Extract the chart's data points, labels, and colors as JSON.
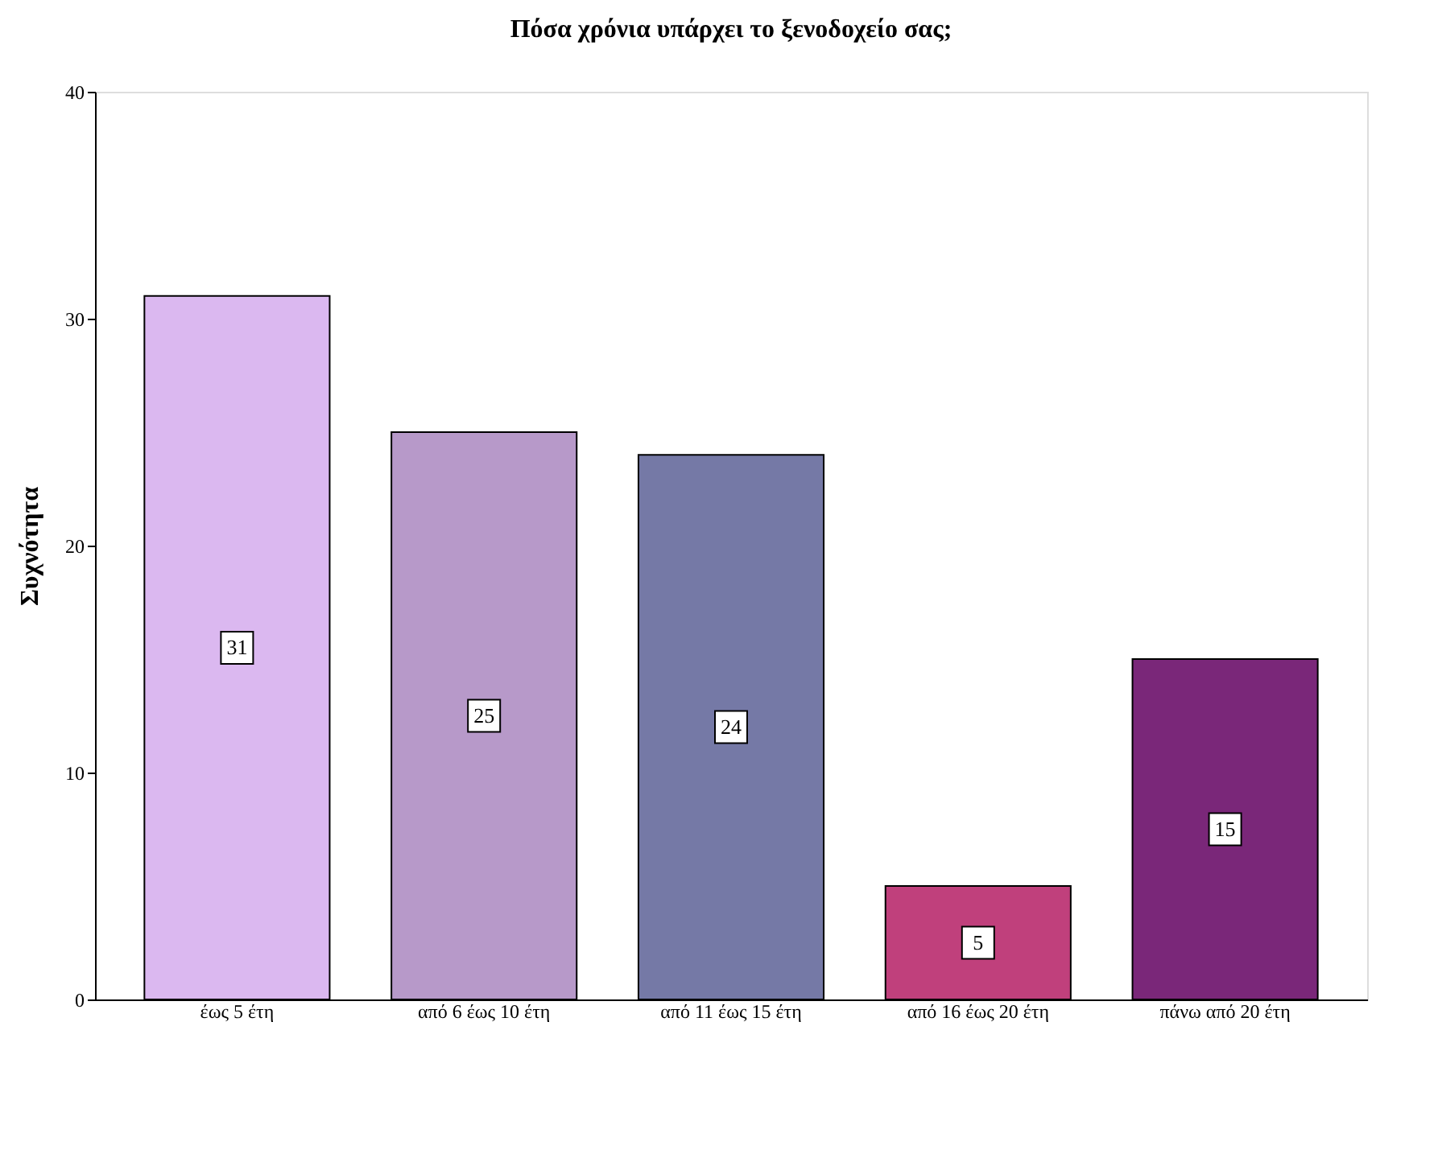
{
  "chart_data": {
    "type": "bar",
    "title": "Πόσα χρόνια υπάρχει το ξενοδοχείο σας;",
    "ylabel": "Συχνότητα",
    "categories": [
      "έως 5 έτη",
      "από 6 έως 10 έτη",
      "από 11 έως 15 έτη",
      "από 16 έως 20 έτη",
      "πάνω από 20 έτη"
    ],
    "values": [
      31,
      25,
      24,
      5,
      15
    ],
    "colors": [
      "#dbb8f0",
      "#b799c9",
      "#7579a6",
      "#c0407c",
      "#7a2779"
    ],
    "ylim": [
      0,
      40
    ],
    "yticks": [
      0,
      10,
      20,
      30,
      40
    ],
    "grid": false,
    "data_labels": true
  }
}
